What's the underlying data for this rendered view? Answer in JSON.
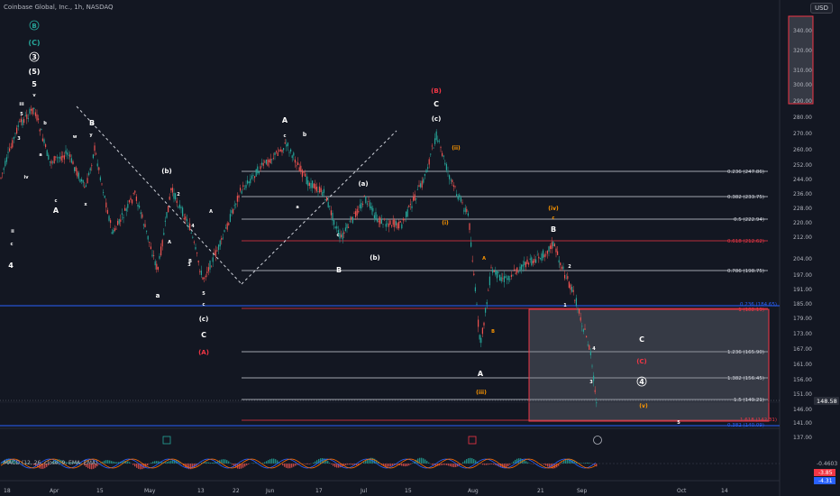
{
  "header": {
    "title": "Coinbase Global, Inc., 1h, NASDAQ",
    "currency_button": "USD"
  },
  "colors": {
    "background": "#131722",
    "up_candle": "#26a69a",
    "down_candle": "#ef5350",
    "fib_line": "#d1d4dc",
    "fib_red": "#f23645",
    "fib_blue": "#2962ff",
    "wave_white": "#ffffff",
    "wave_red": "#f23645",
    "wave_orange": "#ff9800",
    "wave_green": "#26a69a"
  },
  "price_axis": {
    "ticks": [
      "340.00",
      "320.00",
      "310.00",
      "300.00",
      "290.00",
      "280.00",
      "270.00",
      "260.00",
      "252.00",
      "244.00",
      "236.00",
      "228.00",
      "220.00",
      "212.00",
      "204.00",
      "197.00",
      "191.00",
      "185.00",
      "179.00",
      "173.00",
      "167.00",
      "161.00",
      "156.00",
      "151.00",
      "146.00",
      "141.00",
      "137.00"
    ],
    "current_price": "148.58",
    "macd_values": [
      "-0.4603",
      "-3.85",
      "-4.31"
    ]
  },
  "time_axis": {
    "labels": [
      "18",
      "Apr",
      "15",
      "May",
      "13",
      "22",
      "Jun",
      "17",
      "Jul",
      "15",
      "Aug",
      "21",
      "Sep",
      "Oct",
      "14"
    ]
  },
  "fib_levels": [
    {
      "label": "0.236 (247.86)",
      "color": "#d1d4dc"
    },
    {
      "label": "0.382 (233.75)",
      "color": "#d1d4dc"
    },
    {
      "label": "0.5 (222.94)",
      "color": "#d1d4dc"
    },
    {
      "label": "0.618 (212.62)",
      "color": "#f23645"
    },
    {
      "label": "0.786 (198.75)",
      "color": "#d1d4dc"
    },
    {
      "label": "0.236 (184.65)",
      "color": "#2962ff"
    },
    {
      "label": "1 (182.19)",
      "color": "#f23645"
    },
    {
      "label": "1.236 (165.90)",
      "color": "#d1d4dc"
    },
    {
      "label": "1.382 (156.45)",
      "color": "#d1d4dc"
    },
    {
      "label": "1.5 (149.21)",
      "color": "#d1d4dc"
    },
    {
      "label": "1.618 (142.31)",
      "color": "#f23645"
    },
    {
      "label": "0.382 (140.09)",
      "color": "#2962ff"
    }
  ],
  "wave_labels": {
    "white": [
      "B",
      "3",
      "5",
      "iii",
      "v",
      "5",
      "ii",
      "c",
      "4",
      "iv",
      "A",
      "c",
      "b",
      "a",
      "w",
      "x",
      "y",
      "B",
      "(b)",
      "2",
      "4",
      "A",
      "c",
      "b",
      "a",
      "(a)",
      "B",
      "5",
      "3",
      "c",
      "(c)",
      "C",
      "A",
      "c",
      "b",
      "a",
      "(a)",
      "c",
      "B",
      "(b)",
      "(c)",
      "C",
      "B",
      "2",
      "1",
      "4",
      "3",
      "C",
      "4",
      "5"
    ],
    "red": [
      "(B)",
      "(A)",
      "(C)"
    ],
    "orange": [
      "(ii)",
      "(i)",
      "(iii)",
      "A",
      "B",
      "(iv)",
      "c",
      "(v)"
    ],
    "green": [
      "(C)",
      "B"
    ],
    "circled_white": [
      "3",
      "4"
    ]
  },
  "macd": {
    "label": "MACD (12, 26, close, 9, EMA, EMA)"
  }
}
